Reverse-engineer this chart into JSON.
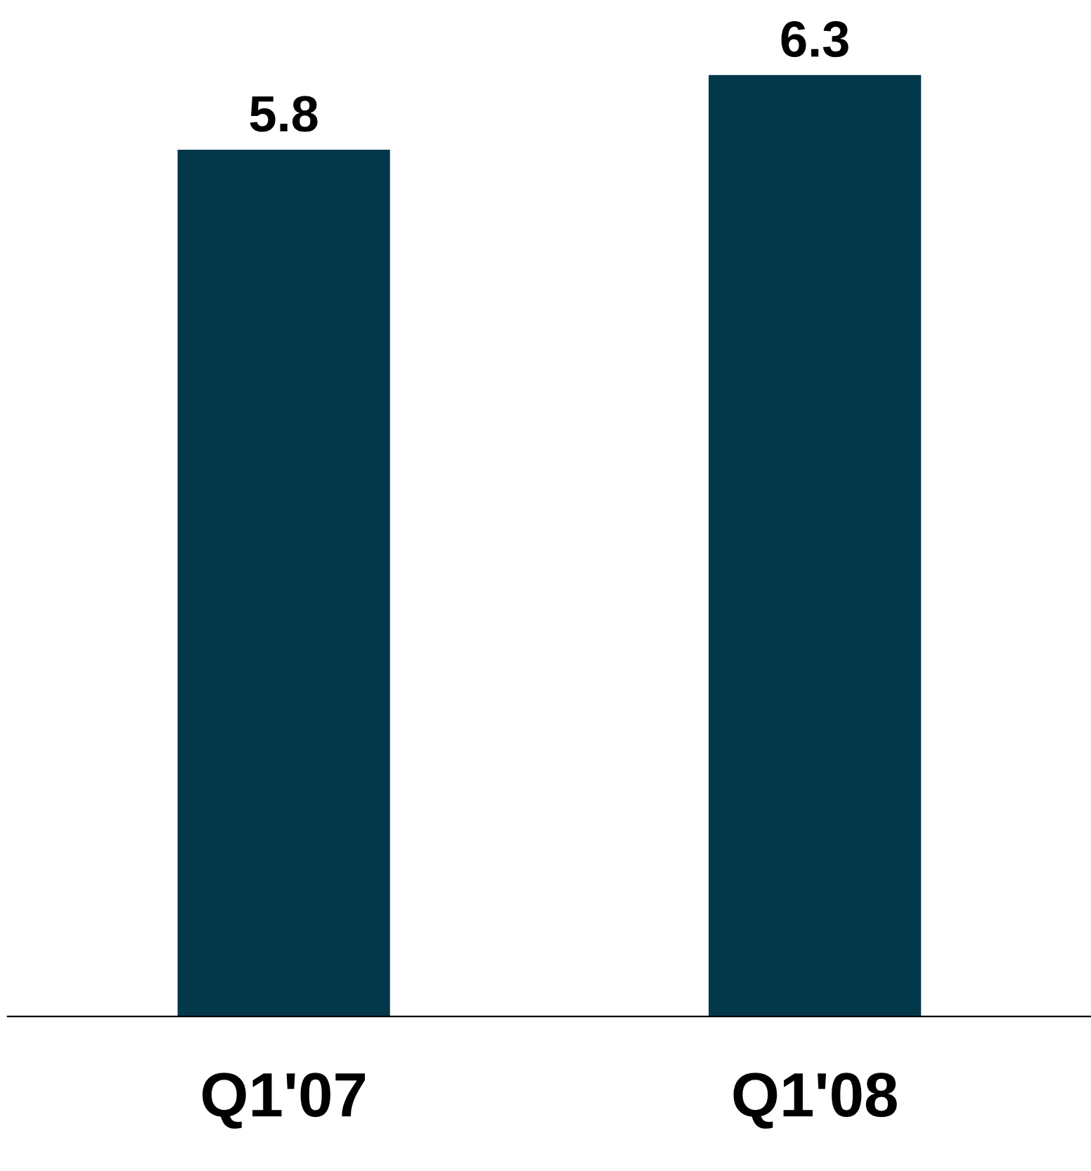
{
  "chart_data": {
    "type": "bar",
    "categories": [
      "Q1'07",
      "Q1'08"
    ],
    "values": [
      5.8,
      6.3
    ],
    "color": "#02384a",
    "ylim": [
      0,
      6.3
    ],
    "data_labels": true,
    "grid": false,
    "legend": false,
    "tick_labels": "x"
  }
}
